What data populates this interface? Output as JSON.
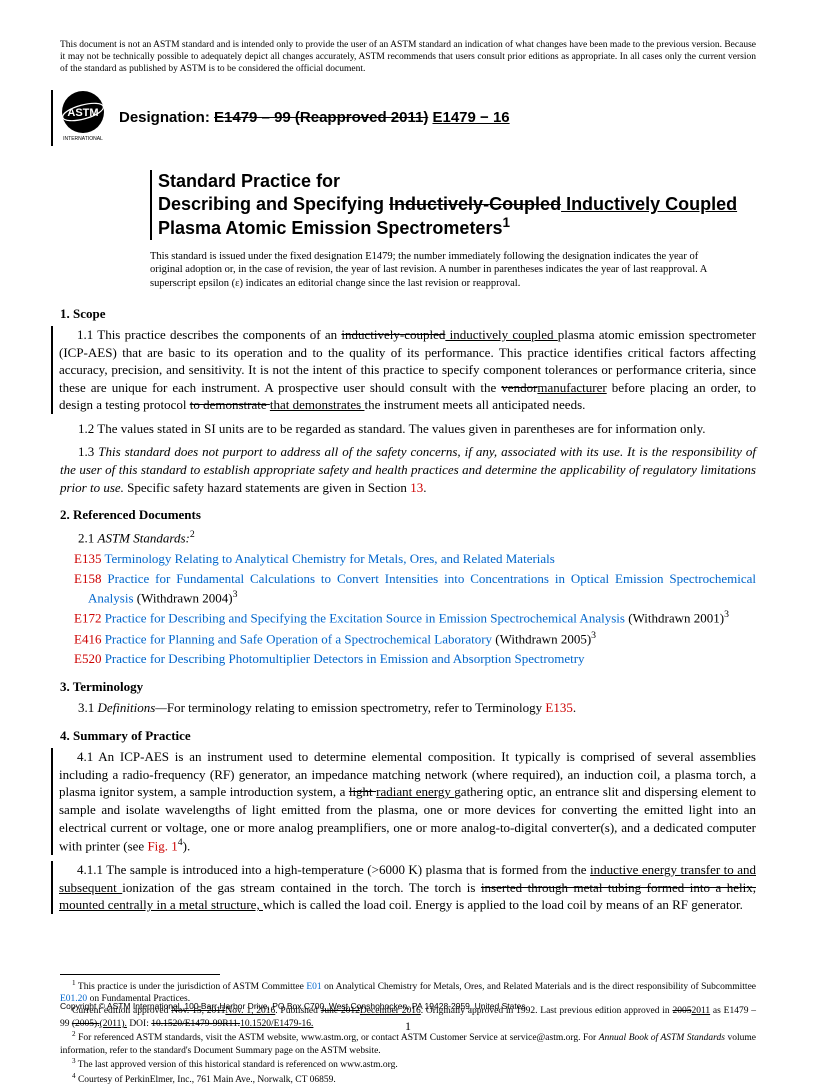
{
  "disclaimer": "This document is not an ASTM standard and is intended only to provide the user of an ASTM standard an indication of what changes have been made to the previous version. Because it may not be technically possible to adequately depict all changes accurately, ASTM recommends that users consult prior editions as appropriate. In all cases only the current version of the standard as published by ASTM is to be considered the official document.",
  "designation_label": "Designation:",
  "designation_old": "E1479 – 99 (Reapproved 2011)",
  "designation_new": "E1479 − 16",
  "title_l1": "Standard Practice for",
  "title_l2a": "Describing and Specifying ",
  "title_l2_strike": "Inductively-Coupled",
  "title_l2_ins": " Inductively Coupled ",
  "title_l2b": "Plasma Atomic Emission Spectrometers",
  "title_sup": "1",
  "status_note": "This standard is issued under the fixed designation E1479; the number immediately following the designation indicates the year of original adoption or, in the case of revision, the year of last revision. A number in parentheses indicates the year of last reapproval. A superscript epsilon (ε) indicates an editorial change since the last revision or reapproval.",
  "s1_head": "1. Scope",
  "s1_1a": "1.1 This practice describes the components of an ",
  "s1_1_del1": "inductively-coupled",
  "s1_1_ins1": " inductively coupled ",
  "s1_1b": "plasma atomic emission spectrometer (ICP-AES) that are basic to its operation and to the quality of its performance. This practice identifies critical factors affecting accuracy, precision, and sensitivity. It is not the intent of this practice to specify component tolerances or performance criteria, since these are unique for each instrument. A prospective user should consult with the ",
  "s1_1_del2": "vendor",
  "s1_1_ins2": "manufacturer",
  "s1_1c": " before placing an order, to design a testing protocol ",
  "s1_1_del3": "to demonstrate ",
  "s1_1_ins3": "that demonstrates ",
  "s1_1d": "the instrument meets all anticipated needs.",
  "s1_2": "1.2 The values stated in SI units are to be regarded as standard. The values given in parentheses are for information only.",
  "s1_3a": "1.3 ",
  "s1_3b": "This standard does not purport to address all of the safety concerns, if any, associated with its use. It is the responsibility of the user of this standard to establish appropriate safety and health practices and determine the applicability of regulatory limitations prior to use.",
  "s1_3c": " Specific safety hazard statements are given in Section ",
  "s1_3_ref": "13",
  "s1_3d": ".",
  "s2_head": "2. Referenced Documents",
  "s2_1": "2.1 ",
  "s2_1_italic": "ASTM Standards:",
  "s2_1_sup": "2",
  "refs": [
    {
      "code": "E135",
      "text": "Terminology Relating to Analytical Chemistry for Metals, Ores, and Related Materials",
      "suffix": ""
    },
    {
      "code": "E158",
      "text": "Practice for Fundamental Calculations to Convert Intensities into Concentrations in Optical Emission Spectrochemical Analysis",
      "suffix": " (Withdrawn 2004)",
      "sup": "3"
    },
    {
      "code": "E172",
      "text": "Practice for Describing and Specifying the Excitation Source in Emission Spectrochemical Analysis",
      "suffix": " (Withdrawn 2001)",
      "sup": "3"
    },
    {
      "code": "E416",
      "text": "Practice for Planning and Safe Operation of a Spectrochemical Laboratory",
      "suffix": " (Withdrawn 2005)",
      "sup": "3"
    },
    {
      "code": "E520",
      "text": "Practice for Describing Photomultiplier Detectors in Emission and Absorption Spectrometry",
      "suffix": ""
    }
  ],
  "s3_head": "3. Terminology",
  "s3_1a": "3.1 ",
  "s3_1_italic": "Definitions—",
  "s3_1b": "For terminology relating to emission spectrometry, refer to Terminology ",
  "s3_1_ref": "E135",
  "s3_1c": ".",
  "s4_head": "4. Summary of Practice",
  "s4_1a": "4.1 An ICP-AES is an instrument used to determine elemental composition. It typically is comprised of several assemblies including a radio-frequency (RF) generator, an impedance matching network (where required), an induction coil, a plasma torch, a plasma ignitor system, a sample introduction system, a ",
  "s4_1_del": "light ",
  "s4_1_ins": "radiant energy ",
  "s4_1b": "gathering optic, an entrance slit and dispersing element to sample and isolate wavelengths of light emitted from the plasma, one or more devices for converting the emitted light into an electrical current or voltage, one or more analog preamplifiers, one or more analog-to-digital converter(s), and a dedicated computer with printer (see ",
  "s4_1_fig": "Fig. 1",
  "s4_1_sup": "4",
  "s4_1c": ").",
  "s4_1_1a": "4.1.1 The sample is introduced into a high-temperature (>6000 K) plasma that is formed from the ",
  "s4_1_1_ins1": "inductive energy transfer to and subsequent ",
  "s4_1_1b": "ionization of the gas stream contained in the torch. The torch is ",
  "s4_1_1_del": "inserted through metal tubing formed into a helix,",
  "s4_1_1_ins2": " mounted centrally in a metal structure, ",
  "s4_1_1c": "which is called the load coil. Energy is applied to the load coil by means of an RF generator.",
  "fn1a": " This practice is under the jurisdiction of ASTM Committee ",
  "fn1_ref1": "E01",
  "fn1b": " on Analytical Chemistry for Metals, Ores, and Related Materials and is the direct responsibility of Subcommittee ",
  "fn1_ref2": "E01.20",
  "fn1c": " on Fundamental Practices.",
  "fn1_p2a": "Current edition approved ",
  "fn1_p2_del1": "Nov. 15, 2011",
  "fn1_p2_ins1": "Nov. 1, 2016",
  "fn1_p2b": ". Published ",
  "fn1_p2_del2": "June 2012",
  "fn1_p2_ins2": "December 2016",
  "fn1_p2c": ". Originally approved in 1992. Last previous edition approved in ",
  "fn1_p2_del3": "2005",
  "fn1_p2_ins3": "2011",
  "fn1_p2d": " as E1479 – 99 ",
  "fn1_p2_del4": "(2005).",
  "fn1_p2_ins4": "(2011).",
  "fn1_p2e": " DOI: ",
  "fn1_p2_del5": "10.1520/E1479-99R11.",
  "fn1_p2_ins5": "10.1520/E1479-16.",
  "fn2a": " For referenced ASTM standards, visit the ASTM website, www.astm.org, or contact ASTM Customer Service at service@astm.org. For ",
  "fn2_italic": "Annual Book of ASTM Standards",
  "fn2b": " volume information, refer to the standard's Document Summary page on the ASTM website.",
  "fn3": " The last approved version of this historical standard is referenced on www.astm.org.",
  "fn4": " Courtesy of PerkinElmer, Inc., 761 Main Ave., Norwalk, CT 06859.",
  "copyright": "Copyright © ASTM International, 100 Barr Harbor Drive, PO Box C700, West Conshohocken, PA 19428-2959. United States",
  "page": "1",
  "logo_text": "ASTM",
  "logo_sub": "INTERNATIONAL"
}
